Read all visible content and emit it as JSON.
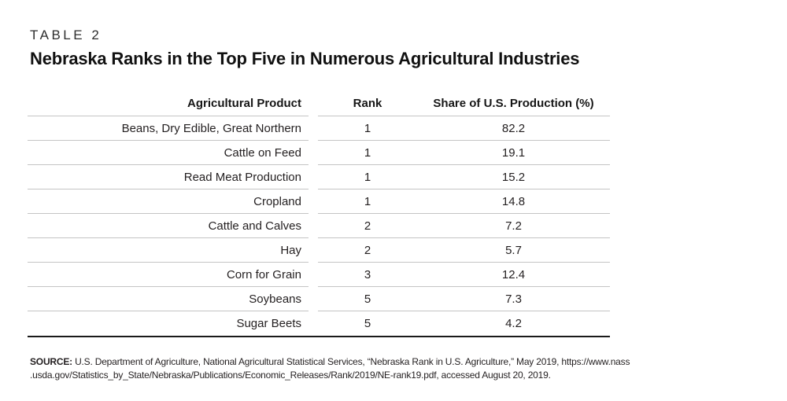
{
  "header": {
    "table_label": "TABLE 2",
    "title": "Nebraska Ranks in the Top Five in Numerous Agricultural Industries"
  },
  "table": {
    "columns": {
      "product": "Agricultural Product",
      "rank": "Rank",
      "share": "Share of U.S. Production (%)"
    },
    "rows": [
      {
        "product": "Beans, Dry Edible, Great Northern",
        "rank": "1",
        "share": "82.2"
      },
      {
        "product": "Cattle on Feed",
        "rank": "1",
        "share": "19.1"
      },
      {
        "product": "Read Meat Production",
        "rank": "1",
        "share": "15.2"
      },
      {
        "product": "Cropland",
        "rank": "1",
        "share": "14.8"
      },
      {
        "product": "Cattle and Calves",
        "rank": "2",
        "share": "7.2"
      },
      {
        "product": "Hay",
        "rank": "2",
        "share": "5.7"
      },
      {
        "product": "Corn for Grain",
        "rank": "3",
        "share": "12.4"
      },
      {
        "product": "Soybeans",
        "rank": "5",
        "share": "7.3"
      },
      {
        "product": "Sugar Beets",
        "rank": "5",
        "share": "4.2"
      }
    ]
  },
  "source": {
    "label": "SOURCE:",
    "line1": " U.S. Department of Agriculture, National Agricultural Statistical Services, “Nebraska Rank in U.S. Agriculture,” May 2019, https://www.nass",
    "line2": ".usda.gov/Statistics_by_State/Nebraska/Publications/Economic_Releases/Rank/2019/NE-rank19.pdf, accessed August 20, 2019."
  },
  "colors": {
    "text": "#231f20",
    "rule": "#c4c4c4",
    "ruleStrong": "#1a1a1a"
  }
}
